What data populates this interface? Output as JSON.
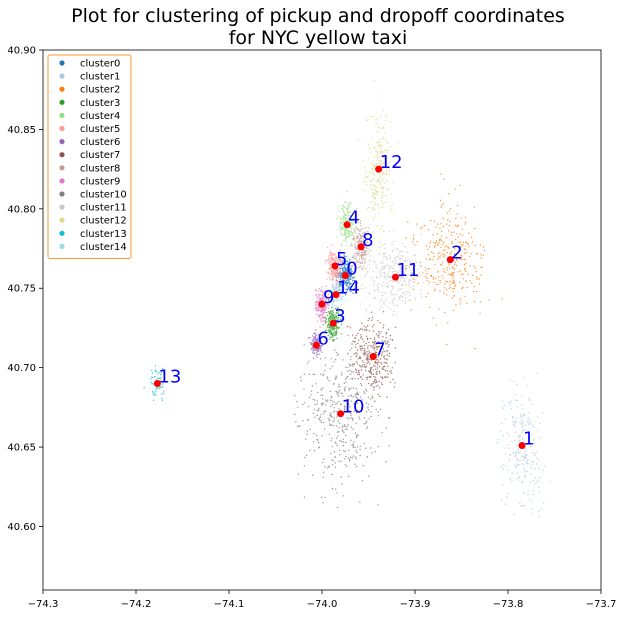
{
  "chart_data": {
    "type": "scatter",
    "title": "Plot for clustering of pickup and dropoff coordinates\nfor NYC yellow taxi",
    "xlabel": "",
    "ylabel": "",
    "xlim": [
      -74.3,
      -73.7
    ],
    "ylim": [
      40.56,
      40.9
    ],
    "x_ticks": [
      -74.3,
      -74.2,
      -74.1,
      -74.0,
      -73.9,
      -73.8,
      -73.7
    ],
    "x_tick_labels": [
      "−74.3",
      "−74.2",
      "−74.1",
      "−74.0",
      "−73.9",
      "−73.8",
      "−73.7"
    ],
    "y_ticks": [
      40.6,
      40.65,
      40.7,
      40.75,
      40.8,
      40.85,
      40.9
    ],
    "y_tick_labels": [
      "40.60",
      "40.65",
      "40.70",
      "40.75",
      "40.80",
      "40.85",
      "40.90"
    ],
    "grid": false,
    "legend_position": "top-left",
    "series": [
      {
        "name": "cluster0",
        "color": "#1f77b4",
        "center": [
          -73.975,
          40.758
        ]
      },
      {
        "name": "cluster1",
        "color": "#aec7e8",
        "center": [
          -73.785,
          40.651
        ]
      },
      {
        "name": "cluster2",
        "color": "#ff7f0e",
        "center": [
          -73.862,
          40.768
        ]
      },
      {
        "name": "cluster3",
        "color": "#2ca02c",
        "center": [
          -73.988,
          40.728
        ]
      },
      {
        "name": "cluster4",
        "color": "#98df8a",
        "center": [
          -73.973,
          40.79
        ]
      },
      {
        "name": "cluster5",
        "color": "#ff9896",
        "center": [
          -73.986,
          40.764
        ]
      },
      {
        "name": "cluster6",
        "color": "#9467bd",
        "center": [
          -74.006,
          40.714
        ]
      },
      {
        "name": "cluster7",
        "color": "#8c564b",
        "center": [
          -73.945,
          40.707
        ]
      },
      {
        "name": "cluster8",
        "color": "#c49c94",
        "center": [
          -73.958,
          40.776
        ]
      },
      {
        "name": "cluster9",
        "color": "#e377c2",
        "center": [
          -74.0,
          40.74
        ]
      },
      {
        "name": "cluster10",
        "color": "#7f7f7f",
        "center": [
          -73.98,
          40.671
        ]
      },
      {
        "name": "cluster11",
        "color": "#c7c7c7",
        "center": [
          -73.921,
          40.757
        ]
      },
      {
        "name": "cluster12",
        "color": "#dbdb8d",
        "center": [
          -73.939,
          40.825
        ]
      },
      {
        "name": "cluster13",
        "color": "#17becf",
        "center": [
          -74.177,
          40.69
        ]
      },
      {
        "name": "cluster14",
        "color": "#9edae5",
        "center": [
          -73.985,
          40.746
        ]
      }
    ],
    "centroid_labels": [
      {
        "text": "0",
        "x": -73.975,
        "y": 40.758
      },
      {
        "text": "1",
        "x": -73.785,
        "y": 40.651
      },
      {
        "text": "2",
        "x": -73.862,
        "y": 40.768
      },
      {
        "text": "3",
        "x": -73.988,
        "y": 40.728
      },
      {
        "text": "4",
        "x": -73.973,
        "y": 40.79
      },
      {
        "text": "5",
        "x": -73.986,
        "y": 40.764
      },
      {
        "text": "6",
        "x": -74.006,
        "y": 40.714
      },
      {
        "text": "7",
        "x": -73.945,
        "y": 40.707
      },
      {
        "text": "8",
        "x": -73.958,
        "y": 40.776
      },
      {
        "text": "9",
        "x": -74.0,
        "y": 40.74
      },
      {
        "text": "10",
        "x": -73.98,
        "y": 40.671
      },
      {
        "text": "11",
        "x": -73.921,
        "y": 40.757
      },
      {
        "text": "12",
        "x": -73.939,
        "y": 40.825
      },
      {
        "text": "13",
        "x": -74.177,
        "y": 40.69
      },
      {
        "text": "14",
        "x": -73.985,
        "y": 40.746
      }
    ],
    "centroid_marker_color": "#ff0000",
    "centroid_label_color": "#0000ff"
  }
}
